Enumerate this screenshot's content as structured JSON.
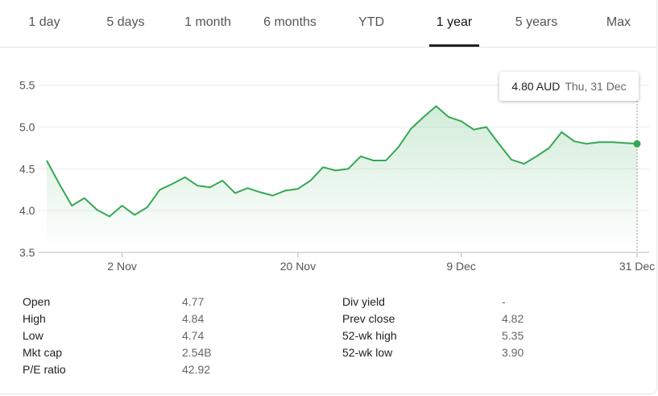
{
  "tabs": [
    "1 day",
    "5 days",
    "1 month",
    "6 months",
    "YTD",
    "1 year",
    "5 years",
    "Max"
  ],
  "active_tab": 5,
  "tooltip": {
    "price": "4.80 AUD",
    "date": "Thu, 31 Dec"
  },
  "chart_data": {
    "type": "line",
    "color": "#34a853",
    "grid": true,
    "categories": [
      null,
      null,
      null,
      null,
      null,
      null,
      "2 Nov",
      null,
      null,
      null,
      null,
      null,
      null,
      null,
      null,
      null,
      null,
      null,
      null,
      null,
      "20 Nov",
      null,
      null,
      null,
      null,
      null,
      null,
      null,
      null,
      null,
      null,
      null,
      null,
      "9 Dec",
      null,
      null,
      null,
      null,
      null,
      null,
      null,
      null,
      null,
      null,
      null,
      null,
      null,
      "31 Dec"
    ],
    "values": [
      4.6,
      4.32,
      4.06,
      4.15,
      4.01,
      3.93,
      4.06,
      3.95,
      4.04,
      4.25,
      4.32,
      4.4,
      4.3,
      4.28,
      4.36,
      4.21,
      4.27,
      4.22,
      4.18,
      4.24,
      4.26,
      4.36,
      4.52,
      4.48,
      4.5,
      4.65,
      4.6,
      4.6,
      4.76,
      4.98,
      5.12,
      5.25,
      5.12,
      5.07,
      4.97,
      5.0,
      4.8,
      4.61,
      4.56,
      4.65,
      4.75,
      4.94,
      4.83,
      4.8,
      4.82,
      4.82,
      4.81,
      4.8
    ],
    "ylim": [
      3.5,
      5.7
    ],
    "yticks": [
      3.5,
      {
        "value": 4,
        "label": "4.0"
      },
      4.5,
      {
        "value": 5,
        "label": "5.0"
      },
      5.5
    ]
  },
  "stats": {
    "left": [
      [
        "Open",
        "4.77"
      ],
      [
        "High",
        "4.84"
      ],
      [
        "Low",
        "4.74"
      ],
      [
        "Mkt cap",
        "2.54B"
      ],
      [
        "P/E ratio",
        "42.92"
      ]
    ],
    "right": [
      [
        "Div yield",
        "-"
      ],
      [
        "Prev close",
        "4.82"
      ],
      [
        "52-wk high",
        "5.35"
      ],
      [
        "52-wk low",
        "3.90"
      ]
    ]
  }
}
